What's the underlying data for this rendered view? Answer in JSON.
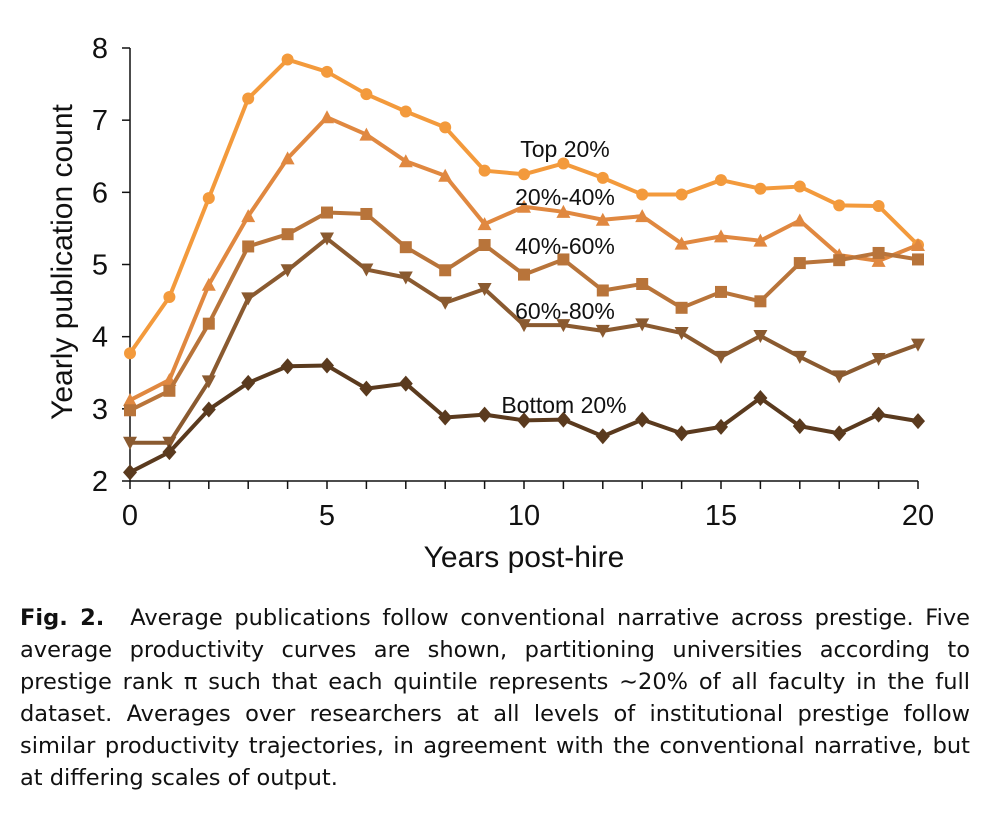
{
  "chart_data": {
    "type": "line",
    "title": "",
    "xlabel": "Years post-hire",
    "ylabel": "Yearly publication count",
    "xlim": [
      0,
      20
    ],
    "ylim": [
      2,
      8
    ],
    "xticks": [
      0,
      5,
      10,
      15,
      20
    ],
    "yticks": [
      2,
      3,
      4,
      5,
      6,
      7,
      8
    ],
    "grid": false,
    "x": [
      0,
      1,
      2,
      3,
      4,
      5,
      6,
      7,
      8,
      9,
      10,
      11,
      12,
      13,
      14,
      15,
      16,
      17,
      18,
      19,
      20
    ],
    "series": [
      {
        "name": "Top 20%",
        "marker": "circle",
        "color": "#f39a3c",
        "values": [
          3.77,
          4.55,
          5.92,
          7.3,
          7.84,
          7.67,
          7.36,
          7.12,
          6.9,
          6.3,
          6.25,
          6.4,
          6.2,
          5.97,
          5.97,
          6.17,
          6.05,
          6.08,
          5.82,
          5.81,
          5.27
        ]
      },
      {
        "name": "20%-40%",
        "marker": "triangle-up",
        "color": "#e08840",
        "values": [
          3.12,
          3.4,
          4.72,
          5.67,
          6.47,
          7.04,
          6.8,
          6.43,
          6.23,
          5.56,
          5.8,
          5.73,
          5.62,
          5.67,
          5.29,
          5.39,
          5.33,
          5.61,
          5.13,
          5.05,
          5.27
        ]
      },
      {
        "name": "40%-60%",
        "marker": "square",
        "color": "#b8743a",
        "values": [
          2.98,
          3.25,
          4.18,
          5.25,
          5.42,
          5.72,
          5.7,
          5.24,
          4.92,
          5.27,
          4.86,
          5.07,
          4.64,
          4.73,
          4.4,
          4.62,
          4.49,
          5.02,
          5.06,
          5.16,
          5.07
        ]
      },
      {
        "name": "60%-80%",
        "marker": "triangle-down",
        "color": "#8a5a30",
        "values": [
          2.53,
          2.53,
          3.38,
          4.53,
          4.92,
          5.36,
          4.93,
          4.82,
          4.47,
          4.66,
          4.16,
          4.16,
          4.08,
          4.17,
          4.05,
          3.72,
          4.01,
          3.72,
          3.45,
          3.69,
          3.89
        ]
      },
      {
        "name": "Bottom 20%",
        "marker": "diamond",
        "color": "#5a3a1e",
        "values": [
          2.12,
          2.4,
          2.99,
          3.36,
          3.59,
          3.6,
          3.28,
          3.35,
          2.88,
          2.92,
          2.84,
          2.85,
          2.62,
          2.85,
          2.66,
          2.75,
          3.15,
          2.76,
          2.66,
          2.92,
          2.83
        ]
      }
    ],
    "annotations": [
      "Top 20%",
      "20%-40%",
      "40%-60%",
      "60%-80%",
      "Bottom 20%"
    ]
  },
  "caption": {
    "label": "Fig. 2.",
    "text": "Average publications follow conventional narrative across prestige. Five average productivity curves are shown, partitioning universities according to prestige rank π such that each quintile represents ∼20% of all faculty in the full dataset. Averages over researchers at all levels of institutional prestige follow similar productivity trajectories, in agreement with the conventional narrative, but at differing scales of output."
  }
}
